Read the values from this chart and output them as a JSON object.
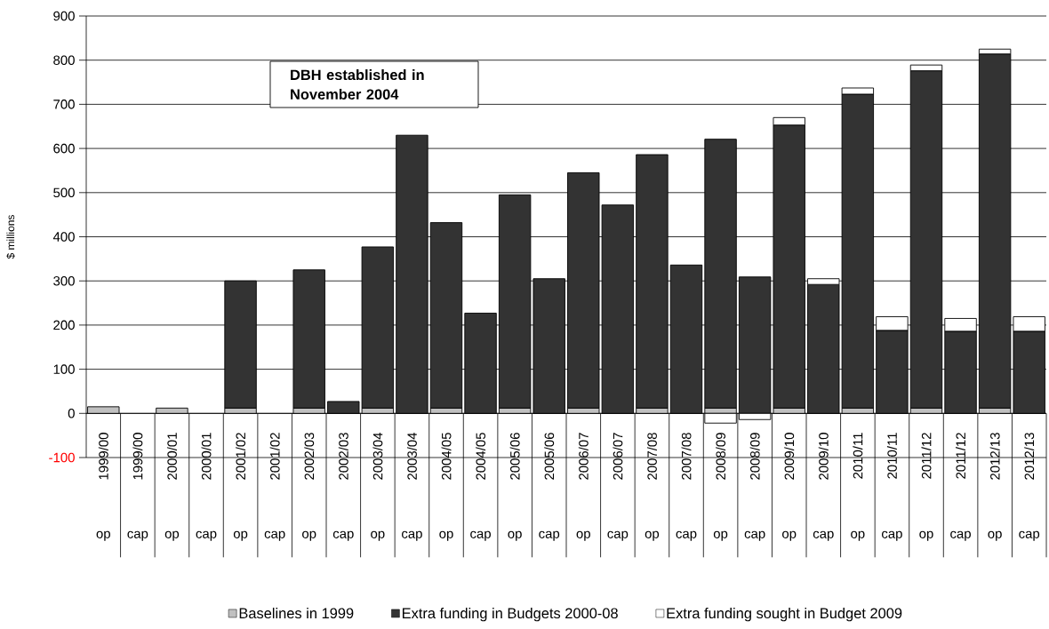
{
  "chart_data": {
    "type": "bar",
    "stacked": true,
    "ylabel": "$ millions",
    "categories": [
      "1999/00",
      "1999/00",
      "2000/01",
      "2000/01",
      "2001/02",
      "2001/02",
      "2002/03",
      "2002/03",
      "2003/04",
      "2003/04",
      "2004/05",
      "2004/05",
      "2005/06",
      "2005/06",
      "2006/07",
      "2006/07",
      "2007/08",
      "2007/08",
      "2008/09",
      "2008/09",
      "2009/10",
      "2009/10",
      "2010/11",
      "2010/11",
      "2011/12",
      "2011/12",
      "2012/13",
      "2012/13"
    ],
    "series": [
      {
        "name": "Baselines in 1999",
        "color": "#c0c0c0",
        "values": [
          15,
          0,
          12,
          0,
          12,
          0,
          12,
          0,
          12,
          0,
          12,
          0,
          12,
          0,
          12,
          0,
          12,
          0,
          12,
          0,
          12,
          0,
          12,
          0,
          12,
          0,
          12,
          0
        ]
      },
      {
        "name": "Extra funding in Budgets 2000-08",
        "color": "#333333",
        "values": [
          0,
          0,
          0,
          0,
          288,
          0,
          313,
          27,
          365,
          630,
          420,
          227,
          483,
          305,
          533,
          472,
          574,
          336,
          609,
          309,
          641,
          292,
          711,
          188,
          764,
          186,
          802,
          186
        ]
      },
      {
        "name": "Extra funding sought in Budget 2009",
        "color": "#ffffff",
        "values": [
          0,
          0,
          0,
          0,
          0,
          0,
          0,
          0,
          0,
          0,
          0,
          0,
          0,
          0,
          0,
          0,
          0,
          0,
          -22,
          -14,
          17,
          13,
          14,
          31,
          13,
          29,
          11,
          33
        ]
      }
    ],
    "ylim": [
      -100,
      900
    ],
    "yticks": [
      -100,
      0,
      100,
      200,
      300,
      400,
      500,
      600,
      700,
      800,
      900
    ],
    "grid": "y",
    "legend": "bottom",
    "annotations": [
      "DBH established in November 2004",
      "op",
      "cap",
      "op",
      "cap",
      "op",
      "cap",
      "op",
      "cap",
      "op",
      "cap",
      "op",
      "cap",
      "op",
      "cap",
      "op",
      "cap",
      "op",
      "cap",
      "op",
      "cap",
      "op",
      "cap",
      "op",
      "cap",
      "op",
      "cap",
      "op",
      "cap"
    ]
  }
}
